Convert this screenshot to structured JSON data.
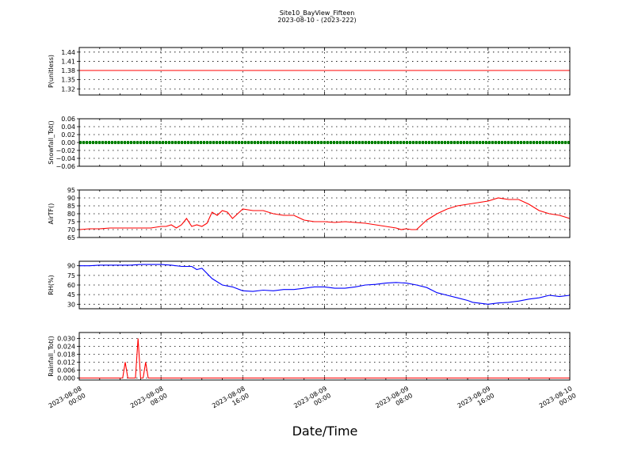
{
  "title": "Site10_BayView_Fifteen",
  "subtitle": "2023-08-10 - (2023-222)",
  "xlabel": "Date/Time",
  "x_ticks": [
    {
      "l1": "2023-08-08",
      "l2": "00:00"
    },
    {
      "l1": "2023-08-08",
      "l2": "08:00"
    },
    {
      "l1": "2023-08-08",
      "l2": "16:00"
    },
    {
      "l1": "2023-08-09",
      "l2": "00:00"
    },
    {
      "l1": "2023-08-09",
      "l2": "08:00"
    },
    {
      "l1": "2023-08-09",
      "l2": "16:00"
    },
    {
      "l1": "2023-08-10",
      "l2": "00:00"
    }
  ],
  "chart_data": [
    {
      "type": "line",
      "ylabel": "P(unitless)",
      "color": "#ff0000",
      "ylim": [
        1.3,
        1.455
      ],
      "yticks": [
        "1.44",
        "1.41",
        "1.38",
        "1.35",
        "1.32"
      ],
      "ytick_values": [
        1.44,
        1.41,
        1.38,
        1.35,
        1.32
      ],
      "grid": true,
      "x_hours": [
        0,
        48
      ],
      "y": [
        1.38,
        1.38
      ]
    },
    {
      "type": "line",
      "ylabel": "Snowfall_Tot()",
      "color": "#008000",
      "marker": "dot",
      "ylim": [
        -0.06,
        0.06
      ],
      "yticks": [
        "0.06",
        "0.04",
        "0.02",
        "0.00",
        "−0.02",
        "−0.04",
        "−0.06"
      ],
      "ytick_values": [
        0.06,
        0.04,
        0.02,
        0.0,
        -0.02,
        -0.04,
        -0.06
      ],
      "grid": true,
      "x_hours": [
        0,
        48
      ],
      "y": [
        0.0,
        0.0
      ]
    },
    {
      "type": "line",
      "ylabel": "AirTF()",
      "color": "#ff0000",
      "ylim": [
        65,
        95
      ],
      "yticks": [
        "95",
        "90",
        "85",
        "80",
        "75",
        "70",
        "65"
      ],
      "ytick_values": [
        95,
        90,
        85,
        80,
        75,
        70,
        65
      ],
      "grid": true,
      "x_hours": [
        0,
        1,
        2,
        3,
        4,
        5,
        6,
        7,
        8,
        8.5,
        9,
        9.5,
        10,
        10.5,
        11,
        11.5,
        12,
        12.5,
        13,
        13.5,
        14,
        14.5,
        15,
        15.5,
        16,
        17,
        18,
        19,
        20,
        21,
        22,
        23,
        24,
        25,
        26,
        27,
        28,
        29,
        30,
        31,
        31.5,
        32,
        32.5,
        33,
        33.5,
        34,
        35,
        36,
        37,
        38,
        39,
        40,
        41,
        42,
        43,
        44,
        45,
        46,
        47,
        48
      ],
      "y": [
        70,
        70.5,
        70.5,
        71,
        71,
        71,
        71,
        71,
        72,
        72,
        73,
        71,
        73,
        77,
        72,
        73,
        72,
        74,
        81,
        79,
        82,
        81,
        77,
        80,
        83,
        82,
        82,
        80,
        79,
        79,
        76,
        75,
        75,
        74.5,
        75,
        74.5,
        74,
        73,
        72,
        71,
        70,
        70.5,
        70,
        70,
        73,
        76,
        80,
        83,
        85,
        86,
        87,
        88,
        90,
        89,
        89,
        86,
        82,
        80,
        79,
        77
      ]
    },
    {
      "type": "line",
      "ylabel": "RH(%)",
      "color": "#0000ff",
      "ylim": [
        23,
        97
      ],
      "yticks": [
        "90",
        "75",
        "60",
        "45",
        "30"
      ],
      "ytick_values": [
        90,
        75,
        60,
        45,
        30
      ],
      "grid": true,
      "x_hours": [
        0,
        1,
        2,
        3,
        4,
        5,
        6,
        7,
        8,
        9,
        10,
        11,
        11.5,
        12,
        13,
        14,
        15,
        16,
        17,
        18,
        19,
        20,
        21,
        22,
        23,
        24,
        25,
        26,
        27,
        28,
        29,
        30,
        31,
        32,
        33,
        34,
        35,
        36,
        37,
        38,
        38.5,
        39,
        40,
        41,
        42,
        43,
        44,
        45,
        46,
        47,
        48
      ],
      "y": [
        90,
        90,
        91,
        91,
        91,
        91,
        92,
        92,
        92,
        91,
        89,
        89,
        84,
        86,
        70,
        60,
        57,
        51,
        50,
        52,
        51,
        53,
        53,
        55,
        57,
        57,
        55,
        55,
        57,
        60,
        61,
        63,
        64,
        63,
        60,
        56,
        48,
        44,
        40,
        36,
        33,
        32,
        30,
        32,
        33,
        35,
        38,
        40,
        44,
        42,
        44
      ]
    },
    {
      "type": "line",
      "ylabel": "Rainfall_Tot()",
      "color": "#ff0000",
      "ylim": [
        -0.0015,
        0.0345
      ],
      "yticks": [
        "0.030",
        "0.024",
        "0.018",
        "0.012",
        "0.006",
        "0.000"
      ],
      "ytick_values": [
        0.03,
        0.024,
        0.018,
        0.012,
        0.006,
        0.0
      ],
      "grid": true,
      "x_hours": [
        0,
        4.25,
        4.5,
        4.75,
        5.5,
        5.75,
        6.0,
        6.25,
        6.5,
        6.75,
        7.0,
        48
      ],
      "y": [
        0,
        0,
        0.012,
        0,
        0,
        0.03,
        0,
        0,
        0.012,
        0,
        0,
        0
      ]
    }
  ]
}
